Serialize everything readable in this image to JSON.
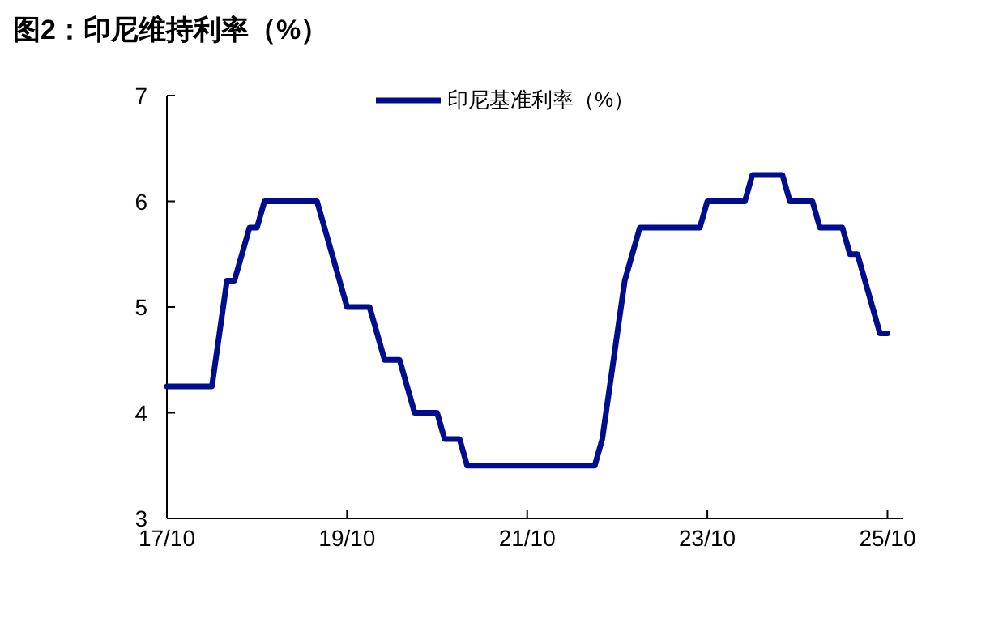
{
  "chart_data": {
    "type": "line",
    "title": "图2：印尼维持利率（%）",
    "categories": [
      "17/10",
      null,
      null,
      null,
      null,
      null,
      null,
      null,
      null,
      null,
      null,
      null,
      null,
      null,
      null,
      null,
      null,
      null,
      null,
      null,
      null,
      null,
      null,
      null,
      "19/10",
      null,
      null,
      null,
      null,
      null,
      null,
      null,
      null,
      null,
      null,
      null,
      null,
      null,
      null,
      null,
      null,
      null,
      null,
      null,
      null,
      null,
      null,
      null,
      "21/10",
      null,
      null,
      null,
      null,
      null,
      null,
      null,
      null,
      null,
      null,
      null,
      null,
      null,
      null,
      null,
      null,
      null,
      null,
      null,
      null,
      null,
      null,
      null,
      "23/10",
      null,
      null,
      null,
      null,
      null,
      null,
      null,
      null,
      null,
      null,
      null,
      null,
      null,
      null,
      null,
      null,
      null,
      null,
      null,
      null,
      null,
      null,
      null,
      "25/10"
    ],
    "series": [
      {
        "name": "印尼基准利率（%）",
        "color": "#000d8c",
        "values": [
          4.25,
          4.25,
          4.25,
          4.25,
          4.25,
          4.25,
          4.25,
          4.75,
          5.25,
          5.25,
          5.5,
          5.75,
          5.75,
          6.0,
          6.0,
          6.0,
          6.0,
          6.0,
          6.0,
          6.0,
          6.0,
          5.75,
          5.5,
          5.25,
          5.0,
          5.0,
          5.0,
          5.0,
          4.75,
          4.5,
          4.5,
          4.5,
          4.25,
          4.0,
          4.0,
          4.0,
          4.0,
          3.75,
          3.75,
          3.75,
          3.5,
          3.5,
          3.5,
          3.5,
          3.5,
          3.5,
          3.5,
          3.5,
          3.5,
          3.5,
          3.5,
          3.5,
          3.5,
          3.5,
          3.5,
          3.5,
          3.5,
          3.5,
          3.75,
          4.25,
          4.75,
          5.25,
          5.5,
          5.75,
          5.75,
          5.75,
          5.75,
          5.75,
          5.75,
          5.75,
          5.75,
          5.75,
          6.0,
          6.0,
          6.0,
          6.0,
          6.0,
          6.0,
          6.25,
          6.25,
          6.25,
          6.25,
          6.25,
          6.0,
          6.0,
          6.0,
          6.0,
          5.75,
          5.75,
          5.75,
          5.75,
          5.5,
          5.5,
          5.25,
          5.0,
          4.75,
          4.75
        ]
      }
    ],
    "ylim": [
      3,
      7
    ],
    "yticks": [
      3,
      4,
      5,
      6,
      7
    ],
    "grid": false,
    "legend": "top",
    "marker": "none",
    "line_style": "solid"
  }
}
